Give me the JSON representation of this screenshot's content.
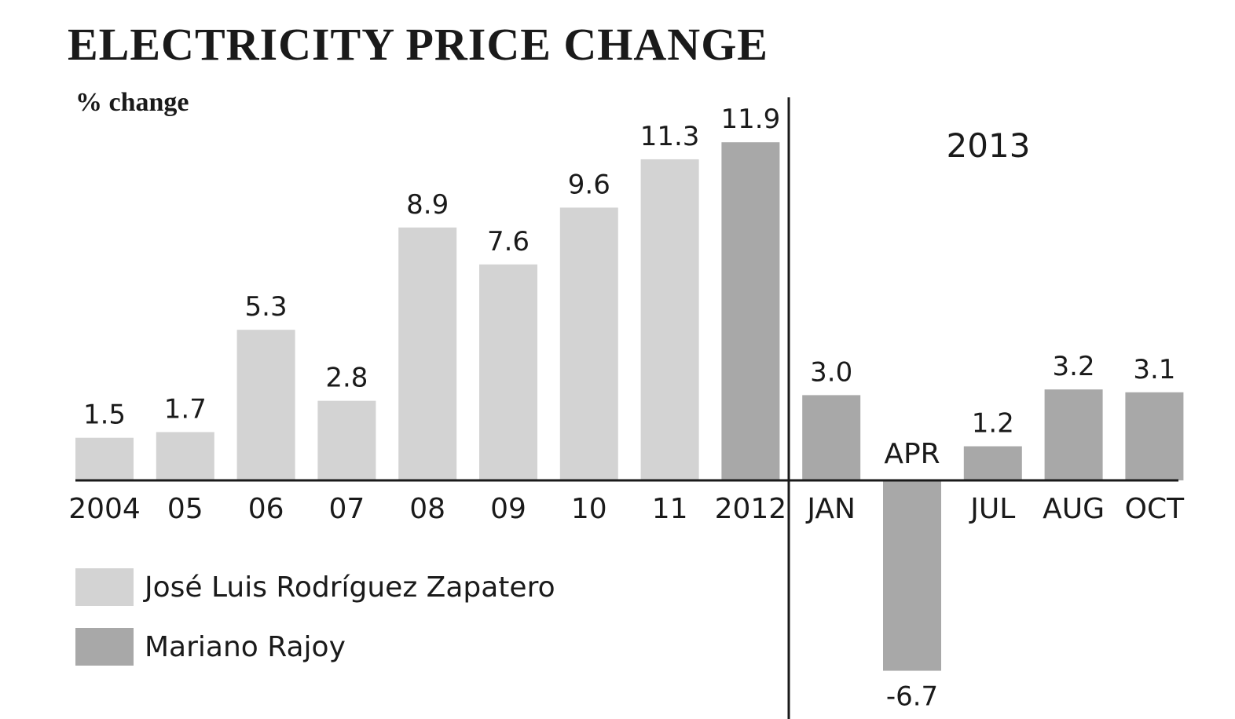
{
  "chart_data": {
    "type": "bar",
    "title": "ELECTRICITY PRICE CHANGE",
    "ylabel": "% change",
    "section_label": "2013",
    "categories": [
      "2004",
      "05",
      "06",
      "07",
      "08",
      "09",
      "10",
      "11",
      "2012",
      "JAN",
      "APR",
      "JUL",
      "AUG",
      "OCT"
    ],
    "values": [
      1.5,
      1.7,
      5.3,
      2.8,
      8.9,
      7.6,
      9.6,
      11.3,
      11.9,
      3.0,
      -6.7,
      1.2,
      3.2,
      3.1
    ],
    "value_labels": [
      "1.5",
      "1.7",
      "5.3",
      "2.8",
      "8.9",
      "7.6",
      "9.6",
      "11.3",
      "11.9",
      "3.0",
      "-6.7",
      "1.2",
      "3.2",
      "3.1"
    ],
    "series_of_bar": [
      0,
      0,
      0,
      0,
      0,
      0,
      0,
      0,
      1,
      1,
      1,
      1,
      1,
      1
    ],
    "series": [
      {
        "name": "José Luis Rodríguez Zapatero",
        "color": "#d3d3d3"
      },
      {
        "name": "Mariano Rajoy",
        "color": "#a8a8a8"
      }
    ],
    "ylim": [
      -7,
      12
    ],
    "grid": false,
    "legend_position": "bottom-left"
  }
}
